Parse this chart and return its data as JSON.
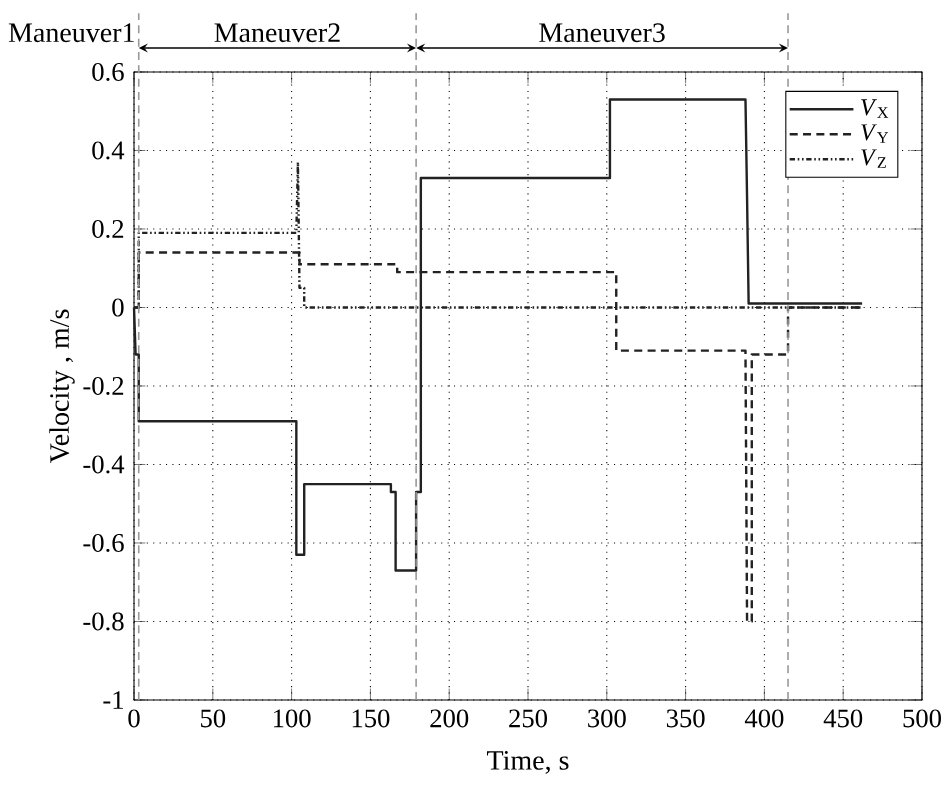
{
  "chart_data": {
    "type": "line",
    "xlabel": "Time,  s",
    "ylabel": "Velocity ,  m/s",
    "xlim": [
      0,
      500
    ],
    "ylim": [
      -1,
      0.6
    ],
    "xticks": [
      0,
      50,
      100,
      150,
      200,
      250,
      300,
      350,
      400,
      450,
      500
    ],
    "yticks": [
      -1,
      -0.8,
      -0.6,
      -0.4,
      -0.2,
      0,
      0.2,
      0.4,
      0.6
    ],
    "grid": true,
    "legend": "top right",
    "marker": "none",
    "series": [
      {
        "name": "*V*$_{X}$",
        "color": "#222222",
        "line_style": "solid",
        "x": [
          0,
          1,
          3,
          3,
          103,
          103,
          108,
          108,
          163,
          163,
          166,
          166,
          179,
          179,
          182,
          182,
          302,
          302,
          388,
          389,
          390,
          462
        ],
        "values": [
          0,
          -0.12,
          -0.12,
          -0.29,
          -0.29,
          -0.63,
          -0.63,
          -0.45,
          -0.45,
          -0.47,
          -0.47,
          -0.67,
          -0.67,
          -0.47,
          -0.47,
          0.33,
          0.33,
          0.53,
          0.53,
          0.28,
          0.01,
          0.01
        ]
      },
      {
        "name": "*V*$_{Y}$",
        "color": "#222222",
        "line_style": "dashed",
        "x": [
          0,
          3,
          3,
          105,
          105,
          167,
          167,
          306,
          306,
          388,
          389,
          392,
          392,
          415,
          415,
          462
        ],
        "values": [
          0,
          0,
          0.14,
          0.14,
          0.11,
          0.11,
          0.09,
          0.09,
          -0.11,
          -0.11,
          -0.8,
          -0.8,
          -0.12,
          -0.12,
          0,
          0
        ]
      },
      {
        "name": "*V*$_{Z}$",
        "color": "#222222",
        "line_style": "dotted",
        "x": [
          0,
          3,
          3,
          103,
          104,
          105,
          108,
          108,
          462
        ],
        "values": [
          0,
          0,
          0.19,
          0.19,
          0.37,
          0.05,
          0.05,
          0,
          0
        ]
      }
    ],
    "ref_lines": [
      {
        "axis": "x",
        "value": 3,
        "color": "#999999",
        "line_style": "dashed"
      },
      {
        "axis": "x",
        "value": 179,
        "color": "#999999",
        "line_style": "dashed"
      },
      {
        "axis": "x",
        "value": 415,
        "color": "#999999",
        "line_style": "dashed"
      }
    ],
    "annotations": [
      "Maneuver1",
      "Maneuver2",
      "Maneuver3"
    ]
  }
}
